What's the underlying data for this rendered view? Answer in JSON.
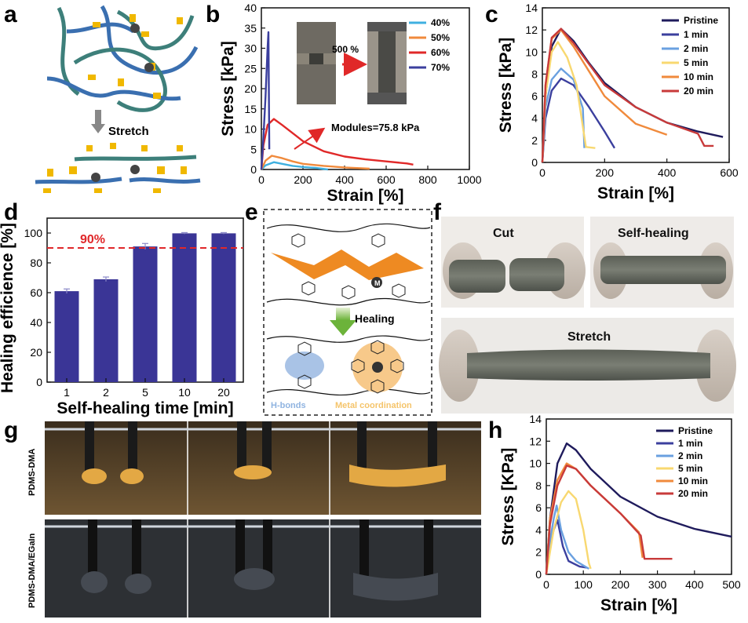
{
  "panels": {
    "a": {
      "label": "a",
      "stretch_label": "Stretch"
    },
    "b": {
      "label": "b",
      "inset_arrow_label": "500 %",
      "annotation": "Modules=75.8 kPa"
    },
    "c": {
      "label": "c"
    },
    "d": {
      "label": "d",
      "threshold_label": "90%"
    },
    "e": {
      "label": "e",
      "healing_label": "Healing",
      "hbond_label": "H-bonds",
      "metal_label": "Metal coordination",
      "metal_symbol": "M"
    },
    "f": {
      "label": "f",
      "cut_label": "Cut",
      "selfheal_label": "Self-healing",
      "stretch_label": "Stretch"
    },
    "g": {
      "label": "g",
      "row1_label": "PDMS-DMA",
      "row2_label": "PDMS-DMA/EGaIn"
    },
    "h": {
      "label": "h"
    }
  },
  "colors": {
    "navy": "#1f1b5c",
    "blue": "#3b3f9e",
    "lightblue": "#6aa0e0",
    "cyan": "#3fb0e0",
    "orange": "#f08a3c",
    "red": "#e02828",
    "yellow": "#f8d870",
    "darkred": "#c83a3a",
    "bar": "#3a3596",
    "threshold": "#e0282a",
    "strand_teal": "#3d7f7a",
    "strand_blue": "#3a6fb0",
    "clamp": "#f0b800"
  },
  "chart_data": [
    {
      "id": "b",
      "type": "line",
      "xlabel": "Strain [%]",
      "ylabel": "Stress [kPa]",
      "xlim": [
        0,
        1000
      ],
      "ylim": [
        0,
        40
      ],
      "xticks": [
        0,
        200,
        400,
        600,
        800,
        1000
      ],
      "yticks": [
        0,
        5,
        10,
        15,
        20,
        25,
        30,
        35,
        40
      ],
      "legend": "top-right",
      "series": [
        {
          "name": "40%",
          "color": "#3fb0e0",
          "x": [
            0,
            20,
            60,
            100,
            150,
            200,
            260,
            320
          ],
          "y": [
            0,
            1.0,
            1.8,
            1.4,
            0.9,
            0.6,
            0.4,
            0.0
          ]
        },
        {
          "name": "50%",
          "color": "#f08a3c",
          "x": [
            0,
            20,
            50,
            100,
            150,
            200,
            300,
            400,
            520
          ],
          "y": [
            0,
            2.2,
            3.4,
            2.8,
            2.0,
            1.4,
            0.9,
            0.5,
            0.2
          ]
        },
        {
          "name": "60%",
          "color": "#e02828",
          "x": [
            0,
            10,
            30,
            60,
            100,
            200,
            300,
            400,
            500,
            600,
            700,
            730
          ],
          "y": [
            0,
            6,
            11,
            12.5,
            11,
            7,
            4.5,
            3.2,
            2.5,
            2.0,
            1.5,
            1.2
          ]
        },
        {
          "name": "70%",
          "color": "#3b3f9e",
          "x": [
            0,
            10,
            20,
            30,
            34,
            38
          ],
          "y": [
            0,
            8,
            18,
            30,
            34,
            5
          ]
        }
      ]
    },
    {
      "id": "c",
      "type": "line",
      "xlabel": "Strain [%]",
      "ylabel": "Stress [kPa]",
      "xlim": [
        0,
        600
      ],
      "ylim": [
        0,
        14
      ],
      "xticks": [
        0,
        200,
        400,
        600
      ],
      "yticks": [
        0,
        2,
        4,
        6,
        8,
        10,
        12,
        14
      ],
      "legend": "top-right",
      "series": [
        {
          "name": "Pristine",
          "color": "#1f1b5c",
          "x": [
            0,
            10,
            30,
            60,
            100,
            150,
            200,
            300,
            400,
            500,
            580
          ],
          "y": [
            0,
            6,
            10.5,
            12.1,
            11.0,
            9.0,
            7.2,
            5.0,
            3.6,
            2.8,
            2.3
          ]
        },
        {
          "name": "1 min",
          "color": "#3b3f9e",
          "x": [
            0,
            10,
            30,
            60,
            100,
            150,
            200,
            232
          ],
          "y": [
            0,
            4,
            6.5,
            7.6,
            7.0,
            5.0,
            2.8,
            1.3
          ]
        },
        {
          "name": "2 min",
          "color": "#6aa0e0",
          "x": [
            0,
            10,
            30,
            60,
            100,
            130,
            135
          ],
          "y": [
            0,
            5,
            7.5,
            8.5,
            7.5,
            4.9,
            1.3
          ]
        },
        {
          "name": "5 min",
          "color": "#f8d870",
          "x": [
            0,
            10,
            30,
            50,
            80,
            110,
            140,
            170
          ],
          "y": [
            0,
            6,
            10,
            10.9,
            9.5,
            7.0,
            1.4,
            1.3
          ]
        },
        {
          "name": "10 min",
          "color": "#f08a3c",
          "x": [
            0,
            10,
            30,
            60,
            100,
            200,
            300,
            400
          ],
          "y": [
            0,
            7,
            11.2,
            12.0,
            10.5,
            6.0,
            3.5,
            2.5
          ]
        },
        {
          "name": "20 min",
          "color": "#c83a3a",
          "x": [
            0,
            10,
            30,
            60,
            100,
            200,
            300,
            400,
            500,
            520,
            550
          ],
          "y": [
            0,
            7,
            11.3,
            12.1,
            10.8,
            7.0,
            5.0,
            3.6,
            2.6,
            1.5,
            1.5
          ]
        }
      ]
    },
    {
      "id": "d",
      "type": "bar",
      "xlabel": "Self-healing time [min]",
      "ylabel": "Healing efficience [%]",
      "categories": [
        "1",
        "2",
        "5",
        "10",
        "20"
      ],
      "values": [
        61,
        69,
        91,
        99.8,
        99.8
      ],
      "errors": [
        1.5,
        1.5,
        2,
        0.5,
        0.5
      ],
      "ylim": [
        0,
        110
      ],
      "yticks": [
        0,
        20,
        40,
        60,
        80,
        100
      ],
      "threshold": 90
    },
    {
      "id": "h",
      "type": "line",
      "xlabel": "Strain [%]",
      "ylabel": "Stress [KPa]",
      "xlim": [
        0,
        500
      ],
      "ylim": [
        0,
        14
      ],
      "xticks": [
        0,
        100,
        200,
        300,
        400,
        500
      ],
      "yticks": [
        0,
        2,
        4,
        6,
        8,
        10,
        12,
        14
      ],
      "legend": "top-right",
      "series": [
        {
          "name": "Pristine",
          "color": "#1f1b5c",
          "x": [
            0,
            10,
            30,
            55,
            80,
            120,
            200,
            300,
            400,
            500
          ],
          "y": [
            0,
            5,
            10,
            11.8,
            11.2,
            9.5,
            7.0,
            5.2,
            4.1,
            3.4
          ]
        },
        {
          "name": "1 min",
          "color": "#3b3f9e",
          "x": [
            0,
            10,
            20,
            30,
            45,
            60,
            90,
            110
          ],
          "y": [
            0,
            2.5,
            4.0,
            4.9,
            2.5,
            1.2,
            0.7,
            0.6
          ]
        },
        {
          "name": "2 min",
          "color": "#6aa0e0",
          "x": [
            0,
            10,
            20,
            28,
            40,
            60,
            80,
            100,
            115
          ],
          "y": [
            0,
            3,
            5,
            6.2,
            4.0,
            2.0,
            1.2,
            0.8,
            0.5
          ]
        },
        {
          "name": "5 min",
          "color": "#f8d870",
          "x": [
            0,
            20,
            40,
            60,
            80,
            100,
            115,
            120
          ],
          "y": [
            0,
            4,
            6.5,
            7.5,
            6.8,
            4.0,
            1.0,
            0.5
          ]
        },
        {
          "name": "10 min",
          "color": "#f08a3c",
          "x": [
            0,
            10,
            30,
            55,
            80,
            120,
            200,
            250,
            260
          ],
          "y": [
            0,
            5,
            8.5,
            10.0,
            9.5,
            8.0,
            5.5,
            3.8,
            1.5
          ]
        },
        {
          "name": "20 min",
          "color": "#c83a3a",
          "x": [
            0,
            10,
            30,
            55,
            80,
            120,
            200,
            255,
            265,
            340
          ],
          "y": [
            0,
            4.5,
            8,
            9.8,
            9.5,
            8.0,
            5.5,
            3.5,
            1.4,
            1.4
          ]
        }
      ]
    }
  ]
}
